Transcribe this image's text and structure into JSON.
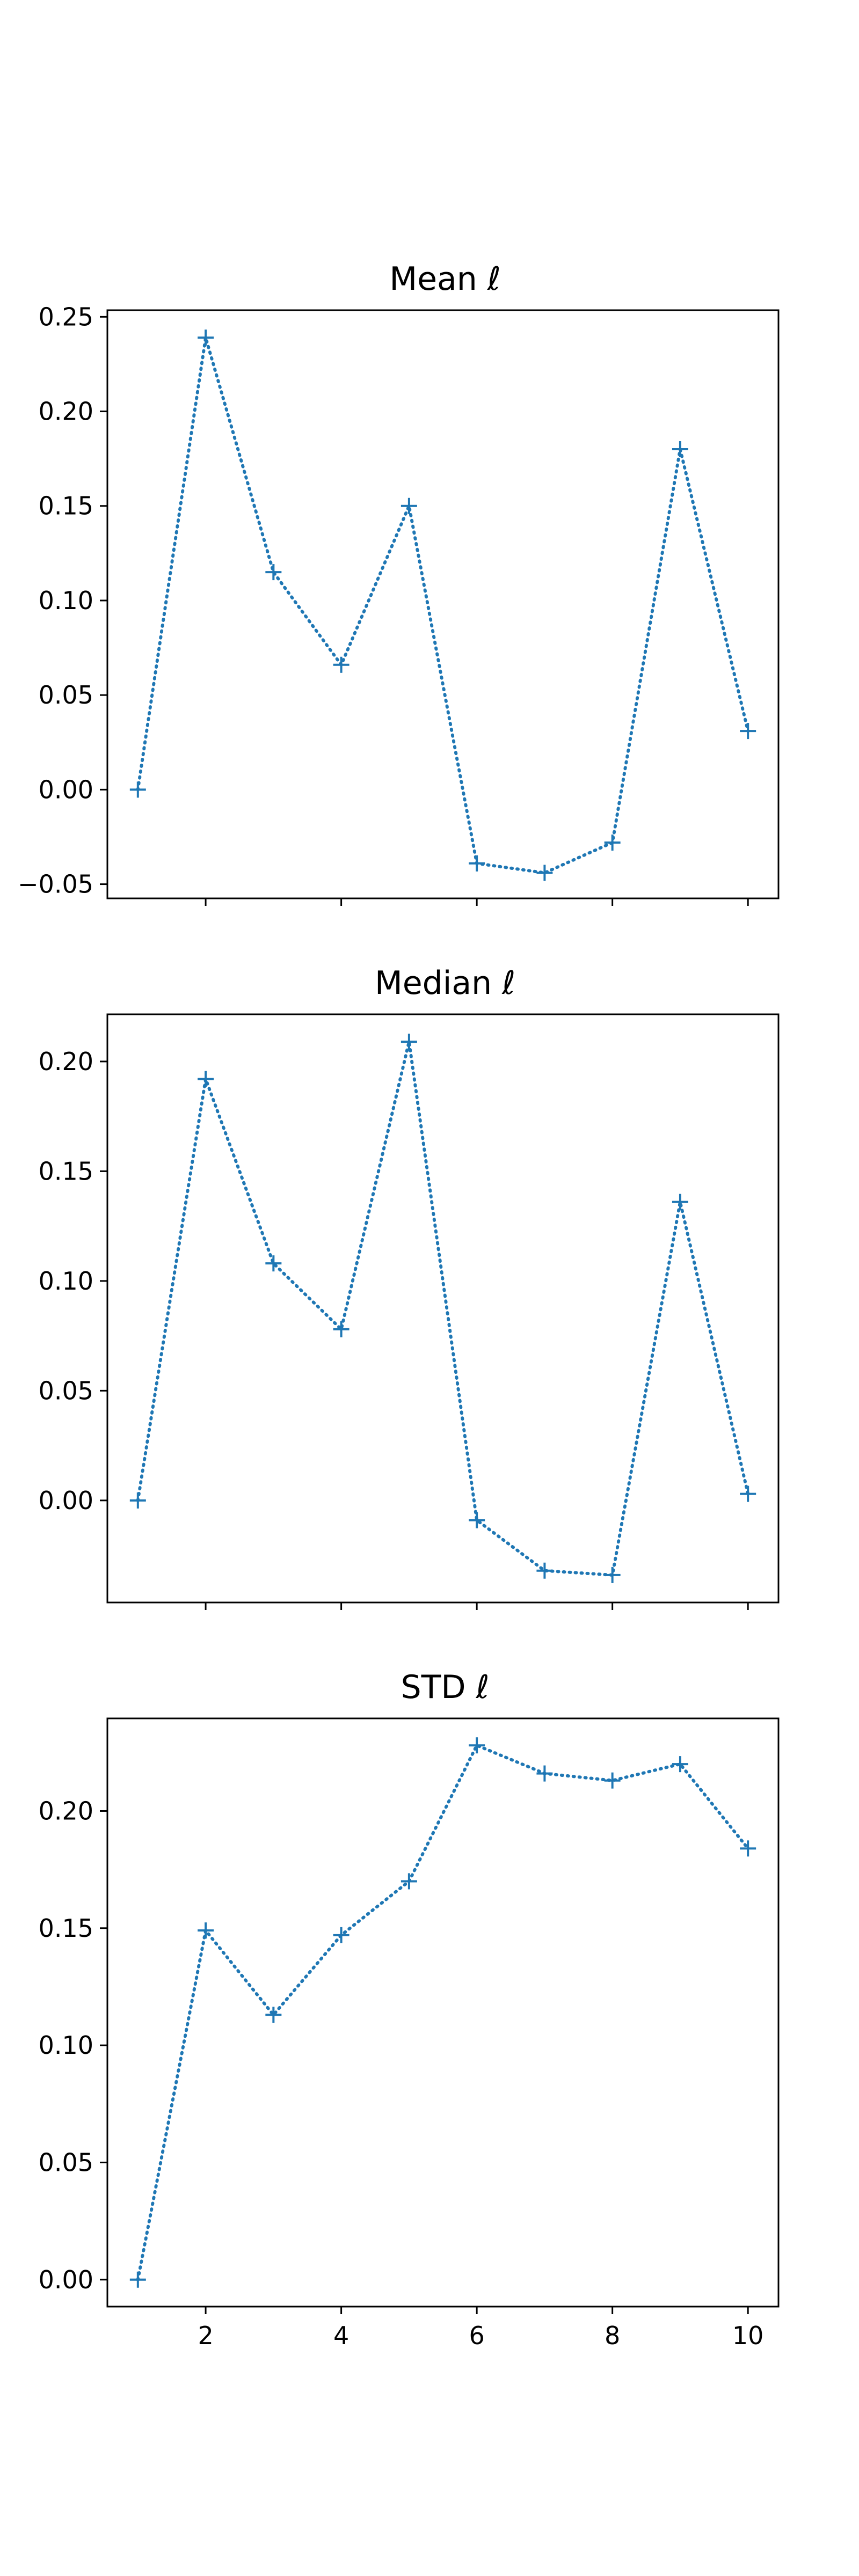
{
  "chart_data": [
    {
      "type": "line",
      "title": "Mean ℓ",
      "xlabel": "",
      "ylabel": "",
      "x": [
        1,
        2,
        3,
        4,
        5,
        6,
        7,
        8,
        9,
        10
      ],
      "series": [
        {
          "values": [
            0.0,
            0.239,
            0.115,
            0.066,
            0.15,
            -0.039,
            -0.044,
            -0.028,
            0.18,
            0.031
          ]
        }
      ],
      "xlim": [
        0.55,
        10.45
      ],
      "ylim": [
        -0.0575,
        0.2535
      ],
      "yticks": [
        -0.05,
        0.0,
        0.05,
        0.1,
        0.15,
        0.2,
        0.25
      ],
      "ytick_labels": [
        "−0.05",
        "0.00",
        "0.05",
        "0.10",
        "0.15",
        "0.20",
        "0.25"
      ],
      "xticks": [
        2,
        4,
        6,
        8,
        10
      ],
      "xtick_labels": [],
      "color": "#1f77b4",
      "marker": "+",
      "linestyle": "dotted",
      "grid": false
    },
    {
      "type": "line",
      "title": "Median ℓ",
      "xlabel": "",
      "ylabel": "",
      "x": [
        1,
        2,
        3,
        4,
        5,
        6,
        7,
        8,
        9,
        10
      ],
      "series": [
        {
          "values": [
            0.0,
            0.192,
            0.108,
            0.078,
            0.209,
            -0.009,
            -0.032,
            -0.034,
            0.136,
            0.003
          ]
        }
      ],
      "xlim": [
        0.55,
        10.45
      ],
      "ylim": [
        -0.0465,
        0.2215
      ],
      "yticks": [
        0.0,
        0.05,
        0.1,
        0.15,
        0.2
      ],
      "ytick_labels": [
        "0.00",
        "0.05",
        "0.10",
        "0.15",
        "0.20"
      ],
      "xticks": [
        2,
        4,
        6,
        8,
        10
      ],
      "xtick_labels": [],
      "color": "#1f77b4",
      "marker": "+",
      "linestyle": "dotted",
      "grid": false
    },
    {
      "type": "line",
      "title": "STD ℓ",
      "xlabel": "",
      "ylabel": "",
      "x": [
        1,
        2,
        3,
        4,
        5,
        6,
        7,
        8,
        9,
        10
      ],
      "series": [
        {
          "values": [
            0.0,
            0.149,
            0.113,
            0.147,
            0.17,
            0.228,
            0.216,
            0.213,
            0.22,
            0.184
          ]
        }
      ],
      "xlim": [
        0.55,
        10.45
      ],
      "ylim": [
        -0.0115,
        0.2395
      ],
      "yticks": [
        0.0,
        0.05,
        0.1,
        0.15,
        0.2
      ],
      "ytick_labels": [
        "0.00",
        "0.05",
        "0.10",
        "0.15",
        "0.20"
      ],
      "xticks": [
        2,
        4,
        6,
        8,
        10
      ],
      "xtick_labels": [
        "2",
        "4",
        "6",
        "8",
        "10"
      ],
      "color": "#1f77b4",
      "marker": "+",
      "linestyle": "dotted",
      "grid": false
    }
  ]
}
